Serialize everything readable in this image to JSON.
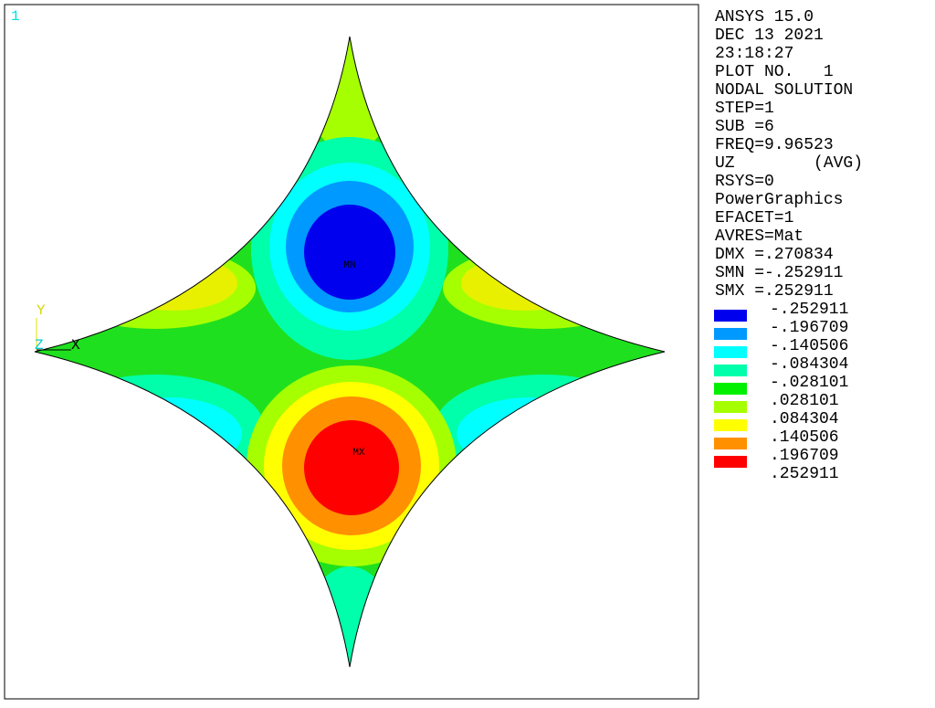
{
  "window": {
    "number": "1"
  },
  "info": [
    "ANSYS 15.0",
    "DEC 13 2021",
    "23:18:27",
    "PLOT NO.   1",
    "NODAL SOLUTION",
    "STEP=1",
    "SUB =6",
    "FREQ=9.96523",
    "UZ        (AVG)",
    "RSYS=0",
    "PowerGraphics",
    "EFACET=1",
    "AVRES=Mat",
    "DMX =.270834",
    "SMN =-.252911",
    "SMX =.252911"
  ],
  "legend": {
    "colors": [
      "#0000ee",
      "#0099ff",
      "#00ffff",
      "#00ffaa",
      "#00f000",
      "#a6ff00",
      "#ffff00",
      "#ff9000",
      "#ff0000"
    ],
    "labels": [
      "-.252911",
      "-.196709",
      "-.140506",
      "-.084304",
      "-.028101",
      ".028101",
      ".084304",
      ".140506",
      ".196709",
      ".252911"
    ]
  },
  "plot": {
    "min_label": "MN",
    "max_label": "MX",
    "triad": {
      "x": "X",
      "y": "Y",
      "z": "Z"
    }
  }
}
